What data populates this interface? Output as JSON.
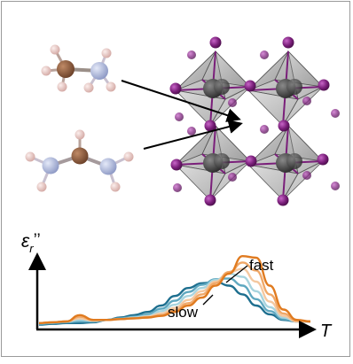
{
  "labels": {
    "y_axis_symbol": "ε",
    "y_axis_subscript": "r",
    "y_axis_primes": "’’",
    "x_axis_symbol": "T",
    "fast": "fast",
    "slow": "slow"
  },
  "colors": {
    "carbon": "#8a5a3c",
    "nitrogen": "#aab4d8",
    "hydrogen": "#e8c4c0",
    "iodide": "#7a1f7a",
    "octahedron": "#8c8c8c",
    "lead": "#444444",
    "curve_fast": "#e07b20",
    "curve_slow": "#1e6f8f"
  },
  "chart_data": {
    "type": "line",
    "x": [
      0.0,
      0.05,
      0.1,
      0.15,
      0.2,
      0.25,
      0.3,
      0.35,
      0.4,
      0.45,
      0.5,
      0.55,
      0.6,
      0.65,
      0.7,
      0.75,
      0.8,
      0.85,
      0.9,
      0.95,
      1.0
    ],
    "series": [
      {
        "values": [
          0.08,
          0.09,
          0.1,
          0.18,
          0.12,
          0.12,
          0.13,
          0.14,
          0.15,
          0.17,
          0.22,
          0.3,
          0.4,
          0.55,
          0.7,
          0.92,
          0.9,
          0.55,
          0.25,
          0.12,
          0.1
        ],
        "color": "#e07b20"
      },
      {
        "values": [
          0.08,
          0.09,
          0.1,
          0.16,
          0.12,
          0.12,
          0.13,
          0.14,
          0.15,
          0.18,
          0.24,
          0.33,
          0.44,
          0.58,
          0.72,
          0.84,
          0.74,
          0.44,
          0.2,
          0.11,
          0.1
        ],
        "color": "#f0a868"
      },
      {
        "values": [
          0.08,
          0.09,
          0.1,
          0.14,
          0.11,
          0.12,
          0.13,
          0.14,
          0.16,
          0.2,
          0.27,
          0.37,
          0.48,
          0.6,
          0.72,
          0.76,
          0.6,
          0.35,
          0.17,
          0.1,
          0.1
        ],
        "color": "#f4c8a0"
      },
      {
        "values": [
          0.08,
          0.09,
          0.1,
          0.12,
          0.11,
          0.12,
          0.13,
          0.15,
          0.17,
          0.23,
          0.31,
          0.42,
          0.52,
          0.62,
          0.7,
          0.66,
          0.48,
          0.28,
          0.15,
          0.1,
          0.1
        ],
        "color": "#a8d4de"
      },
      {
        "values": [
          0.07,
          0.08,
          0.09,
          0.1,
          0.1,
          0.12,
          0.14,
          0.16,
          0.19,
          0.26,
          0.36,
          0.47,
          0.56,
          0.63,
          0.64,
          0.55,
          0.38,
          0.23,
          0.13,
          0.1,
          0.1
        ],
        "color": "#5fa8c0"
      },
      {
        "values": [
          0.06,
          0.07,
          0.08,
          0.08,
          0.09,
          0.12,
          0.15,
          0.18,
          0.22,
          0.3,
          0.42,
          0.52,
          0.58,
          0.6,
          0.55,
          0.44,
          0.3,
          0.19,
          0.12,
          0.1,
          0.1
        ],
        "color": "#1e6f8f"
      }
    ]
  }
}
